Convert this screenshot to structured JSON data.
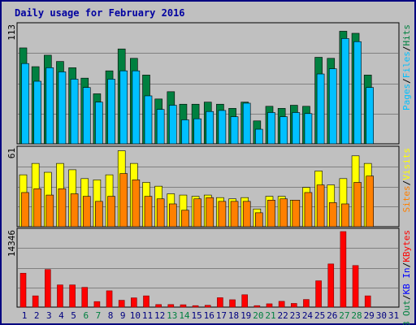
{
  "chart_data": {
    "type": "bar",
    "title": "Daily usage for February 2016",
    "colors": {
      "hits": "#008040",
      "files": "#00c0ff",
      "pages": "#00c0ff",
      "visits": "#ffff00",
      "sites": "#ff8000",
      "kbf": "#ff0000",
      "kbin": "#0000ff",
      "kbout": "#008040",
      "weekday": "#000080",
      "weekend": "#008040",
      "sep": "#000000"
    },
    "days": [
      "1",
      "2",
      "3",
      "4",
      "5",
      "6",
      "7",
      "8",
      "9",
      "10",
      "11",
      "12",
      "13",
      "14",
      "15",
      "16",
      "17",
      "18",
      "19",
      "20",
      "21",
      "22",
      "23",
      "24",
      "25",
      "26",
      "27",
      "28",
      "29",
      "30",
      "31"
    ],
    "weekend_days": [
      "6",
      "7",
      "13",
      "14",
      "20",
      "21",
      "27",
      "28"
    ],
    "panels": [
      {
        "id": "hits",
        "ymax_label": "113",
        "ymax": 113,
        "series": [
          {
            "name": "Hits",
            "key": "hits",
            "values": [
              92,
              74,
              85,
              79,
              73,
              63,
              48,
              70,
              91,
              82,
              66,
              43,
              50,
              38,
              38,
              40,
              38,
              34,
              40,
              22,
              36,
              34,
              37,
              36,
              83,
              82,
              108,
              106,
              66,
              0,
              0
            ]
          },
          {
            "name": "Files",
            "key": "files",
            "values": [
              77,
              60,
              73,
              69,
              62,
              54,
              40,
              62,
              70,
              70,
              46,
              33,
              37,
              23,
              24,
              31,
              32,
              26,
              39,
              14,
              30,
              26,
              30,
              29,
              67,
              72,
              101,
              98,
              54,
              0,
              0
            ]
          },
          {
            "name": "Pages",
            "key": "pages",
            "values": [
              77,
              60,
              73,
              69,
              62,
              54,
              40,
              62,
              70,
              70,
              46,
              33,
              37,
              23,
              24,
              31,
              32,
              26,
              39,
              14,
              30,
              26,
              30,
              29,
              67,
              72,
              101,
              98,
              54,
              0,
              0
            ]
          }
        ],
        "right_labels": [
          {
            "text": "Hits",
            "key": "hits"
          },
          {
            "text": "Files",
            "key": "files"
          },
          {
            "text": "Pages",
            "key": "pages"
          }
        ]
      },
      {
        "id": "visits",
        "ymax_label": "61",
        "ymax": 61,
        "series": [
          {
            "name": "Visits",
            "key": "visits",
            "values": [
              41,
              50,
              43,
              50,
              45,
              38,
              37,
              41,
              60,
              50,
              35,
              32,
              26,
              25,
              24,
              25,
              23,
              22,
              23,
              14,
              24,
              24,
              21,
              31,
              44,
              33,
              38,
              56,
              50,
              0,
              0
            ]
          },
          {
            "name": "Sites",
            "key": "sites",
            "values": [
              27,
              30,
              25,
              30,
              26,
              24,
              20,
              24,
              42,
              37,
              24,
              22,
              18,
              13,
              22,
              23,
              20,
              20,
              20,
              11,
              21,
              22,
              21,
              27,
              33,
              19,
              18,
              35,
              40,
              0,
              0
            ]
          }
        ],
        "right_labels": [
          {
            "text": "Visits",
            "key": "visits"
          },
          {
            "text": "Sites",
            "key": "sites"
          }
        ]
      },
      {
        "id": "kbytes",
        "ymax_label": "14346",
        "ymax": 14346,
        "series": [
          {
            "name": "KBytes",
            "key": "kbf",
            "values": [
              6440,
              2140,
              7140,
              4220,
              4220,
              3750,
              1050,
              3100,
              1300,
              1760,
              2140,
              490,
              490,
              450,
              280,
              350,
              1790,
              1400,
              2350,
              280,
              630,
              1100,
              700,
              1450,
              5000,
              8200,
              14346,
              7900,
              2140,
              0,
              0
            ]
          }
        ],
        "right_labels": [
          {
            "text": "KBytes",
            "key": "kbf"
          },
          {
            "text": "KB In",
            "key": "kbin"
          },
          {
            "text": "KB Out",
            "key": "kbout"
          }
        ]
      }
    ]
  }
}
